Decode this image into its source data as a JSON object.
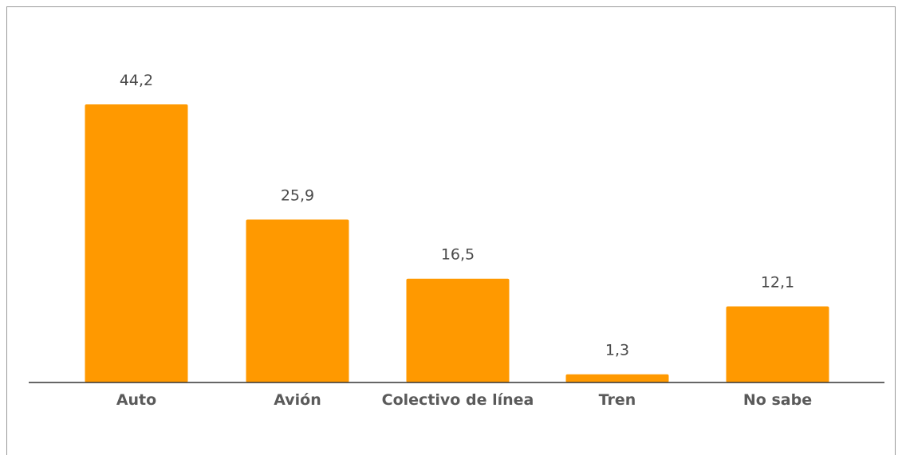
{
  "chart_data": {
    "type": "bar",
    "categories": [
      "Auto",
      "Avión",
      "Colectivo de línea",
      "Tren",
      "No sabe"
    ],
    "values": [
      44.2,
      25.9,
      16.5,
      1.3,
      12.1
    ],
    "value_labels": [
      "44,2",
      "25,9",
      "16,5",
      "1,3",
      "12,1"
    ],
    "title": "",
    "xlabel": "",
    "ylabel": "",
    "ylim": [
      0,
      44.2
    ],
    "grid": false,
    "legend": "none",
    "bar_color": "#ff9900"
  }
}
